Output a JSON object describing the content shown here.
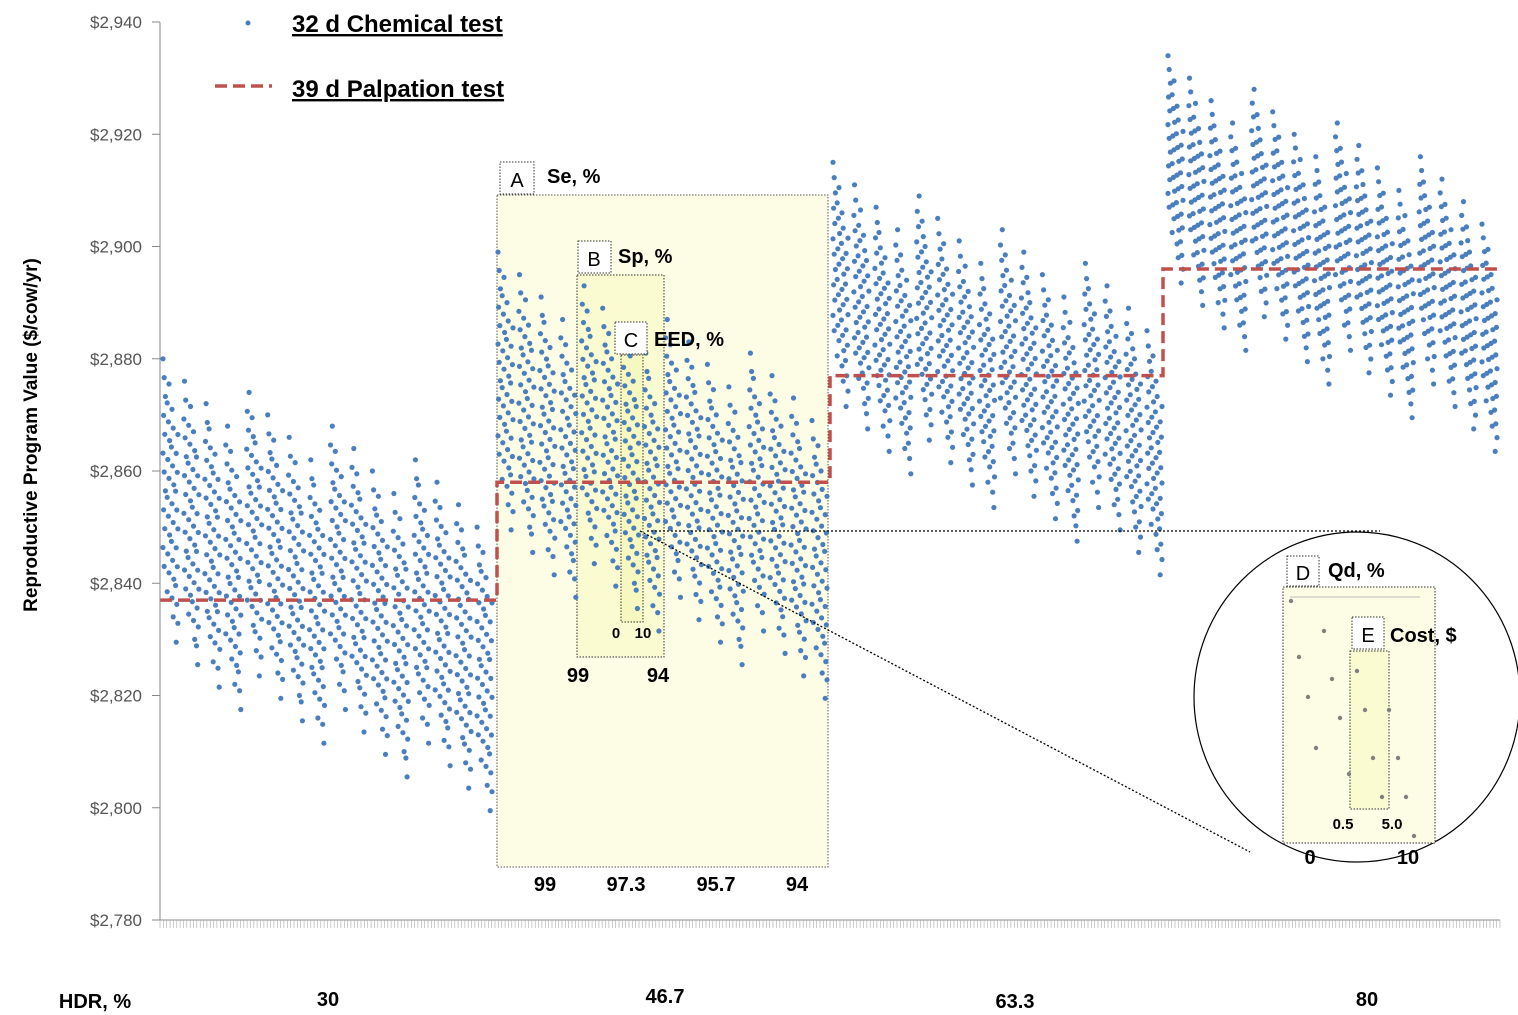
{
  "chart_data": {
    "type": "scatter",
    "ylabel": "Reproductive Program Value ($/cow/yr)",
    "ylim": [
      2780,
      2940
    ],
    "yticks": [
      "$2,940",
      "$2,920",
      "$2,900",
      "$2,880",
      "$2,860",
      "$2,840",
      "$2,820",
      "$2,800",
      "$2,780"
    ],
    "ytick_values": [
      2940,
      2920,
      2900,
      2880,
      2860,
      2840,
      2820,
      2800,
      2780
    ],
    "x_axis_title": "HDR, %",
    "x_groups": [
      "30",
      "46.7",
      "63.3",
      "80"
    ],
    "series": [
      {
        "name": "32 d Chemical test",
        "legend_label": "32 d Chemical ",
        "legend_suffix": "test",
        "color": "#4a7fbf",
        "groups": [
          {
            "hdr": "30",
            "first_max": 2880,
            "drop": 53
          },
          {
            "hdr": "46.7",
            "first_max": 2899,
            "drop": 52
          },
          {
            "hdr": "63.3",
            "first_max": 2915,
            "drop": 46
          },
          {
            "hdr": "80",
            "first_max": 2934,
            "drop": 43
          }
        ]
      },
      {
        "name": "39 d Palpation test",
        "legend_label": "39 d Palpation ",
        "legend_suffix": "test",
        "color": "#c0504d",
        "line_style": "dashed",
        "steps": [
          {
            "hdr": "30",
            "value": 2837
          },
          {
            "hdr": "46.7",
            "value": 2858
          },
          {
            "hdr": "63.3",
            "value": 2877
          },
          {
            "hdr": "80",
            "value": 2896
          }
        ]
      }
    ],
    "annotations": {
      "A": {
        "letter": "A",
        "label": "Se, %",
        "ticks": [
          "99",
          "97.3",
          "95.7",
          "94"
        ]
      },
      "B": {
        "letter": "B",
        "label": "Sp, %",
        "ticks": [
          "99",
          "94"
        ]
      },
      "C": {
        "letter": "C",
        "label": "EED, %",
        "ticks": [
          "0",
          "10"
        ]
      },
      "D": {
        "letter": "D",
        "label": "Qd, %",
        "ticks": [
          "0",
          "10"
        ]
      },
      "E": {
        "letter": "E",
        "label": "Cost, $",
        "ticks": [
          "0.5",
          "5.0"
        ]
      }
    },
    "grid": false,
    "legend_position": "top-left",
    "highlight_color": "#fdfde6"
  }
}
